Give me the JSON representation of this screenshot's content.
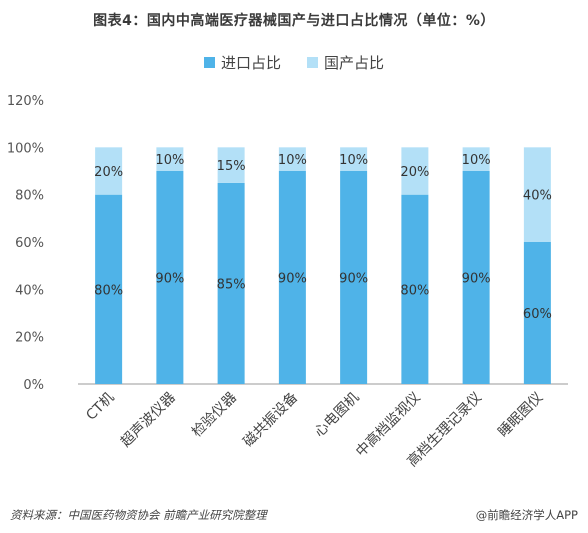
{
  "header": {
    "title": "图表4：国内中高端医疗器械国产与进口占比情况（单位：%）"
  },
  "legend": [
    {
      "label": "进口占比",
      "color": "#4fb3e8"
    },
    {
      "label": "国产占比",
      "color": "#b3e0f7"
    }
  ],
  "footer": {
    "source": "资料来源：中国医药物资协会 前瞻产业研究院整理",
    "credit": "@前瞻经济学人APP"
  },
  "chart_data": {
    "type": "bar",
    "stacked": true,
    "categories": [
      "CT机",
      "超声波仪器",
      "检验仪器",
      "磁共振设备",
      "心电图机",
      "中高档监视仪",
      "高档生理记录仪",
      "睡眠图仪"
    ],
    "series": [
      {
        "name": "进口占比",
        "values": [
          80,
          90,
          85,
          90,
          90,
          80,
          90,
          60
        ],
        "color": "#4fb3e8"
      },
      {
        "name": "国产占比",
        "values": [
          20,
          10,
          15,
          10,
          10,
          20,
          10,
          40
        ],
        "color": "#b3e0f7"
      }
    ],
    "ylim": [
      0,
      120
    ],
    "yticks": [
      "0%",
      "20%",
      "40%",
      "60%",
      "80%",
      "100%",
      "120%"
    ],
    "value_suffix": "%",
    "grid": false
  }
}
